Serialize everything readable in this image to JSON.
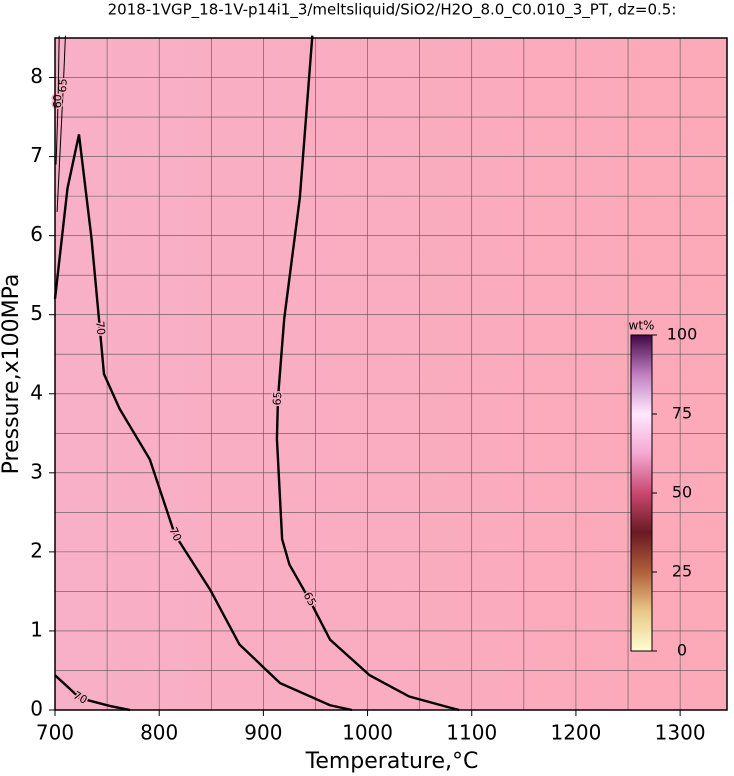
{
  "chart_data": {
    "type": "contour",
    "title": "2018-1VGP_18-1V-p14i1_3/meltsliquid/SiO2/H2O_8.0_C0.010_3_PT, dz=0.5:",
    "x_label": "Temperature,°C",
    "y_label": "Pressure,x100MPa",
    "xlim": [
      700,
      1345
    ],
    "ylim": [
      0,
      8.5
    ],
    "xticks": [
      700,
      800,
      900,
      1000,
      1100,
      1200,
      1300
    ],
    "yticks": [
      0,
      1,
      2,
      3,
      4,
      5,
      6,
      7,
      8
    ],
    "xgrid": [
      700,
      750,
      800,
      850,
      900,
      950,
      1000,
      1050,
      1100,
      1150,
      1200,
      1250,
      1300
    ],
    "ygrid": [
      0,
      0.5,
      1,
      1.5,
      2,
      2.5,
      3,
      3.5,
      4,
      4.5,
      5,
      5.5,
      6,
      6.5,
      7,
      7.5,
      8,
      8.5
    ],
    "grid": true,
    "background": [
      "#f8b0c8",
      "#fca9b8"
    ],
    "contours": [
      {
        "level": 70,
        "x": [
          700,
          712,
          723,
          735,
          743,
          747,
          762,
          791,
          815,
          849,
          877,
          916,
          964,
          985
        ],
        "values": [
          5.2,
          6.6,
          7.28,
          5.97,
          4.83,
          4.25,
          3.81,
          3.17,
          2.22,
          1.52,
          0.83,
          0.34,
          0.06,
          0
        ]
      },
      {
        "level": 65,
        "x": [
          947,
          935,
          920,
          914,
          913,
          918,
          925,
          944,
          964,
          1002,
          1040,
          1079,
          1088
        ],
        "values": [
          8.53,
          6.48,
          4.95,
          3.94,
          3.43,
          2.16,
          1.84,
          1.4,
          0.89,
          0.44,
          0.17,
          0.03,
          0
        ]
      },
      {
        "level": 70,
        "x": [
          700,
          724,
          753,
          772
        ],
        "values": [
          0.44,
          0.15,
          0.05,
          0
        ]
      },
      {
        "level": 65,
        "x": [
          710,
          708,
          705,
          702
        ],
        "values": [
          8.53,
          7.9,
          7.1,
          6.3
        ]
      },
      {
        "level": 60,
        "x": [
          704,
          703,
          701
        ],
        "values": [
          8.53,
          7.7,
          6.9
        ]
      }
    ],
    "colorbar": {
      "label": "wt%",
      "lim": [
        0,
        100
      ],
      "ticks": [
        0,
        25,
        50,
        75,
        100
      ],
      "colors": [
        "#ffffd0",
        "#e8c888",
        "#b0603a",
        "#6a1a22",
        "#c84870",
        "#f4a8d0",
        "#ffe8ff",
        "#c080c0",
        "#400848"
      ]
    }
  }
}
